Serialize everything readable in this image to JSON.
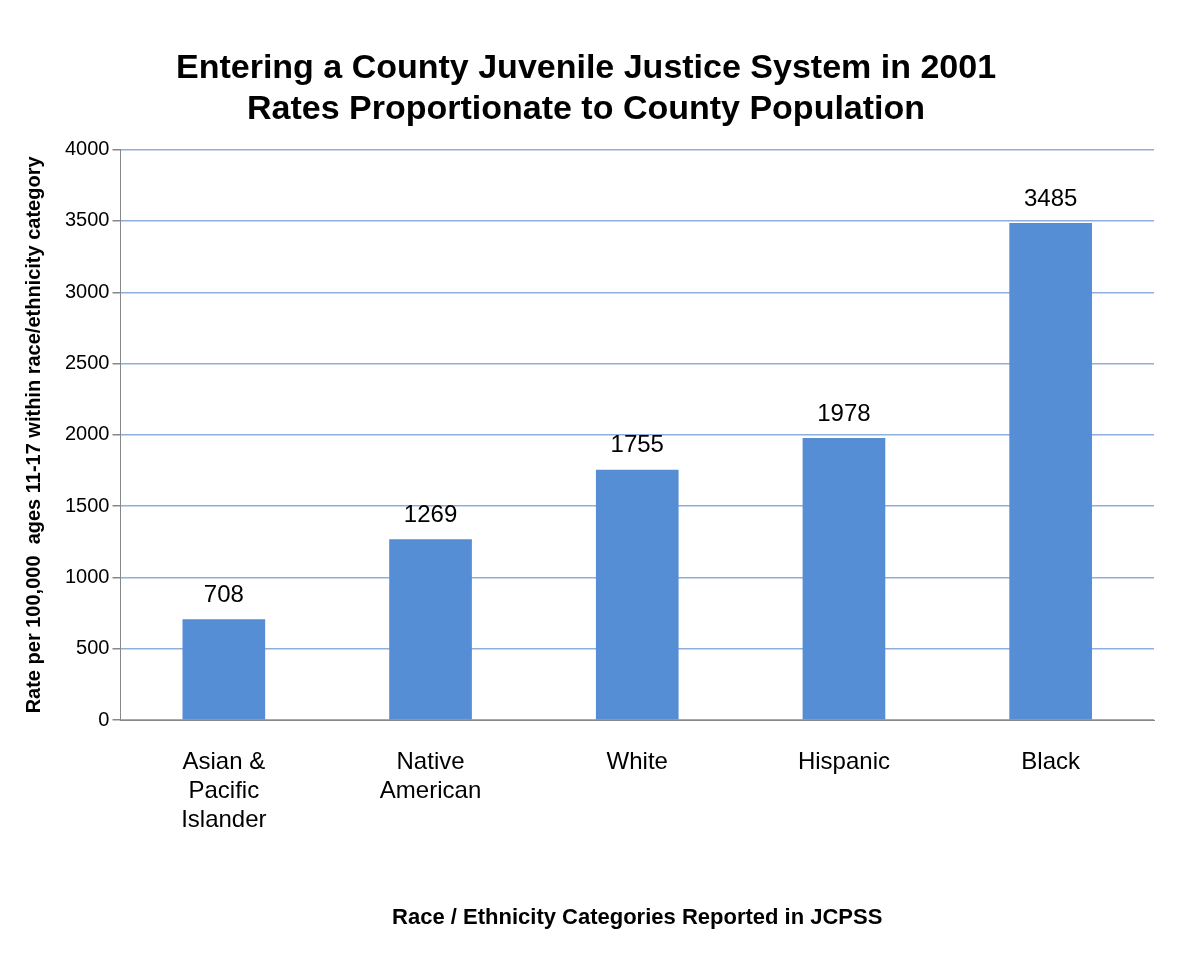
{
  "chart_data": {
    "type": "bar",
    "title": [
      "Entering a County Juvenile Justice System in 2001",
      "Rates Proportionate to County Population"
    ],
    "xlabel": "Race / Ethnicity Categories Reported in JCPSS",
    "ylabel": "Rate per 100,000  ages 11-17 within race/ethnicity category",
    "categories": [
      "Asian & Pacific Islander",
      "Native American",
      "White",
      "Hispanic",
      "Black"
    ],
    "values": [
      708,
      1269,
      1755,
      1978,
      3485
    ],
    "color": "#558ed5",
    "ylim": [
      0,
      4000
    ],
    "yticks": [
      0,
      500,
      1000,
      1500,
      2000,
      2500,
      3000,
      3500,
      4000
    ],
    "grid": "y",
    "legend": false,
    "data_labels": true
  }
}
